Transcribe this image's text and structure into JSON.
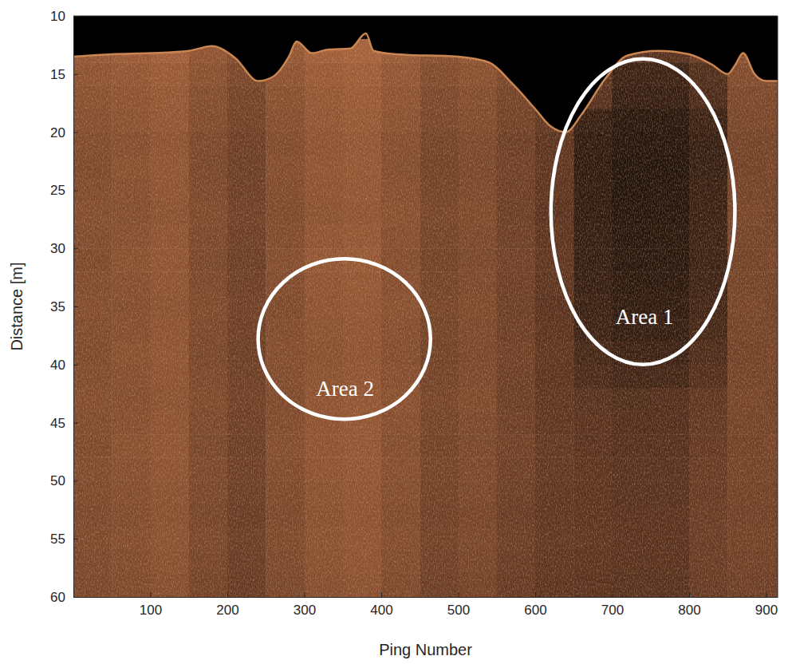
{
  "chart_data": {
    "type": "heatmap",
    "x_label": "Ping Number",
    "y_label": "Distance [m]",
    "xlim": [
      0,
      915
    ],
    "ylim": [
      10,
      60
    ],
    "xticks": [
      100,
      200,
      300,
      400,
      500,
      600,
      700,
      800,
      900
    ],
    "yticks": [
      10,
      15,
      20,
      25,
      30,
      35,
      40,
      45,
      50,
      55,
      60
    ],
    "cells": {
      "x_edges": [
        0,
        50,
        100,
        150,
        200,
        250,
        300,
        350,
        400,
        450,
        500,
        550,
        600,
        650,
        700,
        750,
        800,
        850,
        900,
        915
      ],
      "y_edges": [
        10,
        12,
        14,
        16,
        18,
        20,
        22,
        24,
        26,
        28,
        30,
        32,
        34,
        36,
        38,
        40,
        42,
        44,
        46,
        48,
        50,
        52,
        54,
        56,
        58,
        60
      ],
      "values": [
        [
          0,
          0,
          0,
          0,
          0,
          0,
          0,
          0,
          0,
          0,
          0,
          0,
          0,
          0,
          0,
          0,
          0,
          0,
          0
        ],
        [
          58,
          60,
          63,
          56,
          50,
          58,
          63,
          65,
          60,
          53,
          56,
          50,
          46,
          38,
          33,
          33,
          40,
          53,
          53
        ],
        [
          55,
          57,
          60,
          53,
          47,
          55,
          60,
          62,
          57,
          50,
          53,
          47,
          43,
          35,
          22,
          22,
          30,
          50,
          50
        ],
        [
          53,
          55,
          58,
          51,
          45,
          53,
          58,
          60,
          55,
          48,
          51,
          45,
          41,
          33,
          20,
          20,
          28,
          48,
          48
        ],
        [
          52,
          54,
          57,
          50,
          44,
          52,
          57,
          59,
          54,
          47,
          50,
          44,
          37,
          20,
          15,
          15,
          22,
          47,
          47
        ],
        [
          50,
          52,
          55,
          48,
          42,
          50,
          55,
          57,
          52,
          45,
          48,
          42,
          35,
          18,
          14,
          14,
          20,
          45,
          45
        ],
        [
          49,
          53,
          56,
          47,
          41,
          51,
          56,
          58,
          51,
          44,
          47,
          43,
          36,
          17,
          13,
          13,
          20,
          44,
          46
        ],
        [
          50,
          52,
          55,
          48,
          42,
          50,
          55,
          57,
          52,
          45,
          48,
          42,
          35,
          18,
          13,
          14,
          21,
          45,
          45
        ],
        [
          51,
          51,
          54,
          49,
          43,
          49,
          54,
          56,
          53,
          46,
          49,
          41,
          34,
          18,
          14,
          14,
          21,
          46,
          44
        ],
        [
          50,
          52,
          55,
          48,
          42,
          50,
          56,
          58,
          52,
          45,
          48,
          42,
          35,
          19,
          14,
          15,
          22,
          45,
          45
        ],
        [
          49,
          53,
          56,
          47,
          41,
          51,
          57,
          59,
          51,
          44,
          47,
          43,
          36,
          19,
          15,
          15,
          22,
          44,
          46
        ],
        [
          50,
          52,
          55,
          48,
          42,
          50,
          56,
          58,
          52,
          45,
          48,
          42,
          35,
          20,
          16,
          16,
          23,
          45,
          45
        ],
        [
          51,
          51,
          54,
          49,
          43,
          49,
          55,
          57,
          53,
          46,
          49,
          41,
          34,
          21,
          17,
          17,
          24,
          46,
          44
        ],
        [
          50,
          52,
          55,
          48,
          42,
          50,
          54,
          56,
          52,
          45,
          48,
          42,
          35,
          23,
          19,
          19,
          26,
          45,
          45
        ],
        [
          49,
          53,
          56,
          47,
          41,
          51,
          53,
          55,
          51,
          44,
          47,
          43,
          36,
          26,
          22,
          22,
          29,
          44,
          46
        ],
        [
          50,
          52,
          55,
          48,
          42,
          50,
          54,
          56,
          52,
          45,
          48,
          42,
          35,
          28,
          25,
          25,
          31,
          45,
          45
        ],
        [
          51,
          51,
          54,
          49,
          43,
          49,
          55,
          57,
          53,
          46,
          49,
          41,
          36,
          33,
          30,
          31,
          36,
          46,
          44
        ],
        [
          50,
          52,
          55,
          48,
          42,
          50,
          55,
          57,
          52,
          45,
          48,
          42,
          36,
          34,
          31,
          31,
          37,
          45,
          45
        ],
        [
          49,
          53,
          56,
          47,
          41,
          51,
          55,
          57,
          51,
          44,
          47,
          43,
          37,
          34,
          32,
          32,
          38,
          44,
          46
        ],
        [
          50,
          52,
          55,
          48,
          42,
          50,
          55,
          57,
          52,
          45,
          48,
          42,
          37,
          35,
          33,
          33,
          39,
          45,
          45
        ],
        [
          49,
          51,
          54,
          47,
          41,
          49,
          54,
          56,
          51,
          44,
          47,
          41,
          36,
          35,
          33,
          33,
          39,
          44,
          44
        ],
        [
          48,
          50,
          53,
          46,
          40,
          48,
          53,
          55,
          50,
          43,
          46,
          40,
          36,
          35,
          34,
          34,
          40,
          43,
          43
        ],
        [
          49,
          51,
          54,
          47,
          41,
          49,
          54,
          56,
          51,
          44,
          47,
          41,
          37,
          36,
          34,
          34,
          40,
          44,
          44
        ],
        [
          48,
          50,
          53,
          46,
          40,
          48,
          53,
          55,
          50,
          43,
          46,
          40,
          36,
          35,
          34,
          34,
          40,
          43,
          43
        ],
        [
          47,
          49,
          52,
          45,
          39,
          47,
          52,
          54,
          49,
          42,
          45,
          39,
          35,
          34,
          33,
          33,
          39,
          42,
          42
        ]
      ]
    },
    "seabed": {
      "x": [
        0,
        50,
        100,
        150,
        180,
        210,
        240,
        260,
        280,
        290,
        310,
        330,
        360,
        380,
        390,
        420,
        500,
        540,
        570,
        600,
        620,
        640,
        660,
        690,
        720,
        760,
        800,
        830,
        850,
        860,
        870,
        885,
        900,
        915
      ],
      "depth": [
        13.5,
        13.3,
        13.2,
        13.0,
        12.6,
        13.6,
        15.6,
        15.2,
        13.5,
        12.2,
        13.2,
        12.9,
        12.8,
        11.5,
        13.0,
        13.3,
        13.5,
        14.0,
        15.8,
        18.0,
        19.5,
        20.0,
        18.5,
        15.5,
        13.4,
        13.0,
        13.3,
        14.2,
        15.0,
        14.2,
        13.2,
        15.0,
        15.6,
        15.6
      ]
    },
    "annotations": [
      {
        "text": "Area 1",
        "x": 742,
        "y": 36.1,
        "ellipse": {
          "cx": 740,
          "cy": 26.85,
          "rx": 119.5,
          "ry": 13.15
        }
      },
      {
        "text": "Area 2",
        "x": 353,
        "y": 42.3,
        "ellipse": {
          "cx": 352,
          "cy": 37.8,
          "rx": 112,
          "ry": 6.9
        }
      }
    ]
  }
}
